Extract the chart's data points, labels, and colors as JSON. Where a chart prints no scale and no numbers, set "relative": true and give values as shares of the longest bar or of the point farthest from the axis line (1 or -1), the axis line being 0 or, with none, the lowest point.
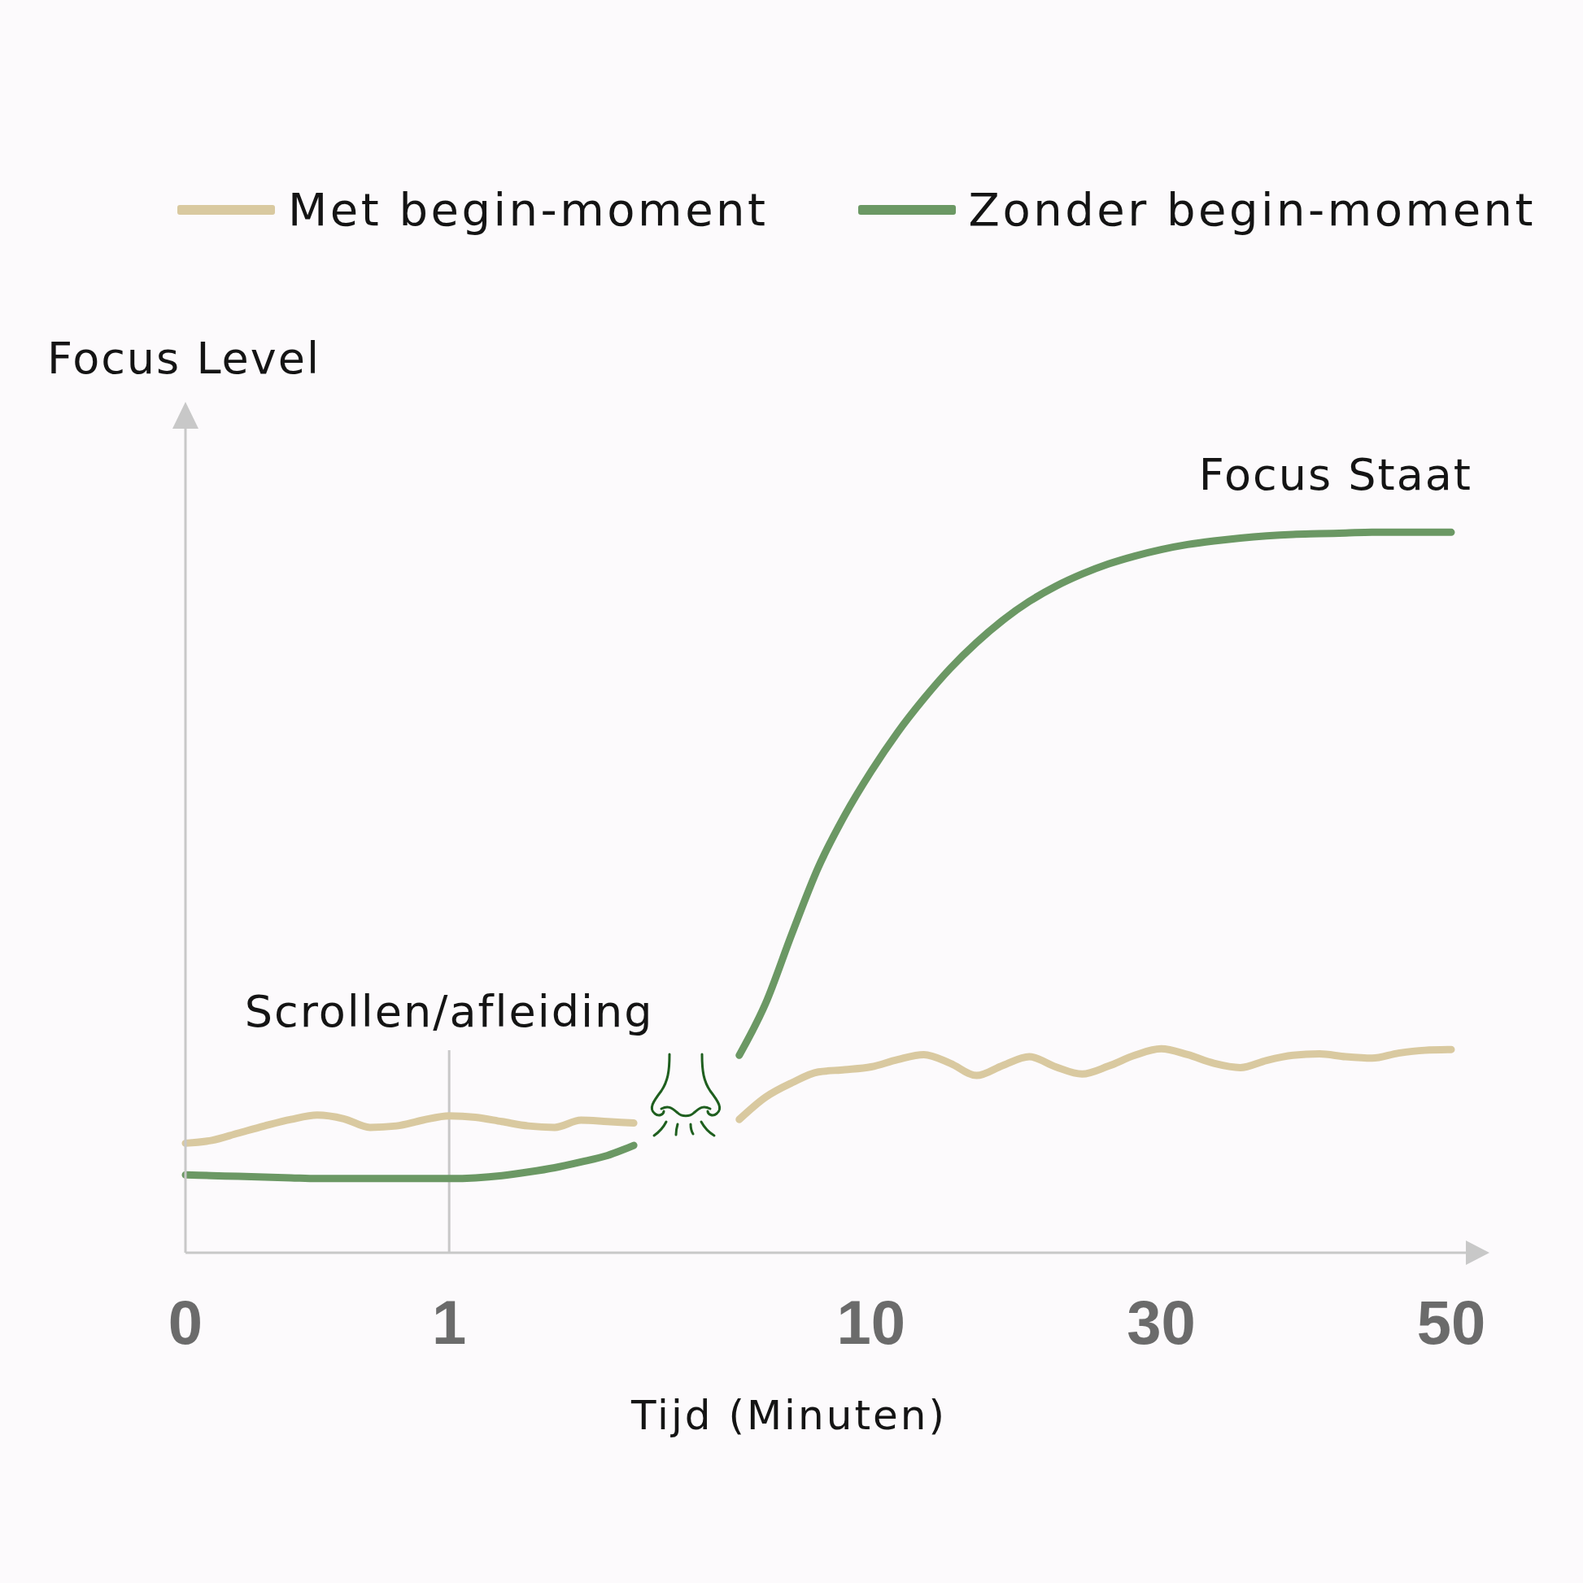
{
  "chart_data": {
    "type": "line",
    "ylabel": "Focus Level",
    "xlabel": "Tijd (Minuten)",
    "relative": true,
    "legend": "top",
    "line_style": "solid",
    "categories": [
      "0",
      null,
      null,
      null,
      null,
      null,
      null,
      null,
      null,
      null,
      "1",
      null,
      null,
      null,
      null,
      null,
      null,
      null,
      null,
      null,
      null,
      null,
      null,
      null,
      null,
      null,
      "10",
      null,
      null,
      null,
      null,
      null,
      null,
      null,
      null,
      null,
      null,
      "30",
      null,
      null,
      null,
      null,
      null,
      null,
      null,
      null,
      null,
      null,
      "50"
    ],
    "series": [
      {
        "name": "Met begin-moment",
        "color": "#d9c9a0",
        "values": [
          0.152,
          0.156,
          0.166,
          0.176,
          0.185,
          0.191,
          0.186,
          0.174,
          0.176,
          0.184,
          0.19,
          0.188,
          0.182,
          0.176,
          0.174,
          0.184,
          0.182,
          0.18,
          null,
          null,
          null,
          0.185,
          0.216,
          0.236,
          0.251,
          0.254,
          0.258,
          0.268,
          0.275,
          0.263,
          0.246,
          0.26,
          0.272,
          0.258,
          0.248,
          0.259,
          0.274,
          0.283,
          0.275,
          0.263,
          0.257,
          0.267,
          0.274,
          0.276,
          0.272,
          0.27,
          0.277,
          0.281,
          0.282
        ]
      },
      {
        "name": "Zonder begin-moment",
        "color": "#6b9864",
        "values": [
          0.108,
          0.107,
          0.106,
          0.105,
          0.104,
          0.103,
          0.103,
          0.103,
          0.103,
          0.103,
          0.103,
          0.104,
          0.107,
          0.112,
          0.118,
          0.126,
          0.135,
          0.149,
          null,
          null,
          null,
          0.274,
          0.346,
          0.443,
          0.535,
          0.607,
          0.668,
          0.722,
          0.769,
          0.811,
          0.847,
          0.878,
          0.904,
          0.925,
          0.942,
          0.956,
          0.967,
          0.976,
          0.983,
          0.988,
          0.992,
          0.995,
          0.997,
          0.998,
          0.999,
          1.0,
          1.0,
          1.0,
          1.0
        ]
      }
    ],
    "ref_lines": [
      {
        "axis": "x",
        "value": "1",
        "label": "Scrollen/afleiding",
        "color": "#c8c8c8"
      }
    ],
    "annotations": [
      "Focus Staat"
    ]
  }
}
